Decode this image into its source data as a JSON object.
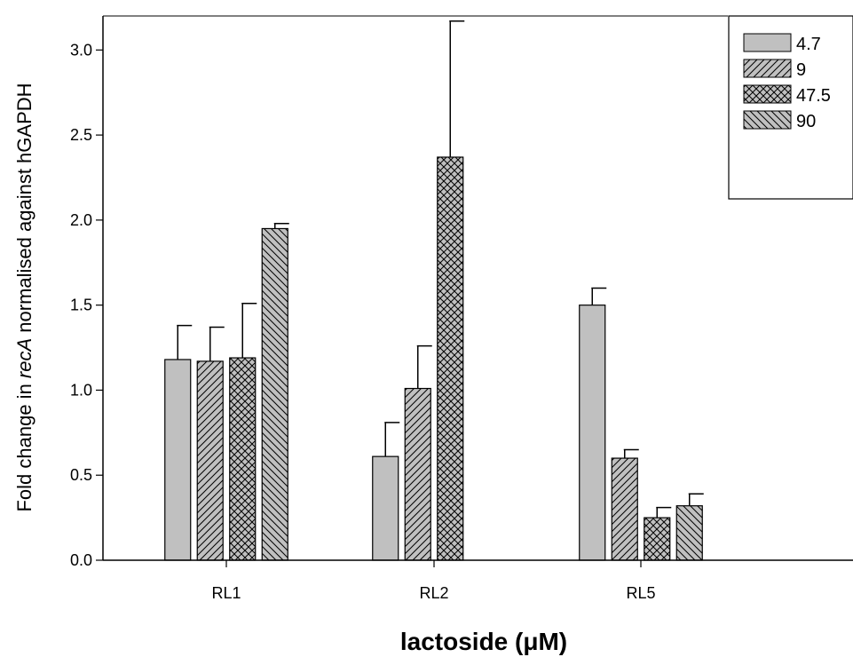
{
  "chart_data": {
    "type": "bar",
    "title": "",
    "xlabel": "lactoside (μM)",
    "ylabel_parts": [
      "Fold change in ",
      "recA",
      " normalised against hGAPDH"
    ],
    "categories": [
      "RL1",
      "RL2",
      "RL5"
    ],
    "ylim": [
      0,
      3.2
    ],
    "yticks": [
      "0.0",
      "0.5",
      "1.0",
      "1.5",
      "2.0",
      "2.5",
      "3.0"
    ],
    "legend_position": "top-right",
    "grid": false,
    "series": [
      {
        "name": "4.7",
        "pattern": "solid",
        "values": [
          1.18,
          0.61,
          1.5
        ],
        "errors": [
          0.2,
          0.2,
          0.1
        ]
      },
      {
        "name": "9",
        "pattern": "diagonal-right",
        "values": [
          1.17,
          1.01,
          0.6
        ],
        "errors": [
          0.2,
          0.25,
          0.05
        ]
      },
      {
        "name": "47.5",
        "pattern": "crosshatch",
        "values": [
          1.19,
          2.37,
          0.25
        ],
        "errors": [
          0.32,
          0.8,
          0.06
        ]
      },
      {
        "name": "90",
        "pattern": "diagonal-left",
        "values": [
          1.95,
          null,
          0.32
        ],
        "errors": [
          0.03,
          null,
          0.07
        ]
      }
    ],
    "colors": {
      "bar_fill": "#c0c0c0",
      "stroke": "#000000"
    }
  }
}
